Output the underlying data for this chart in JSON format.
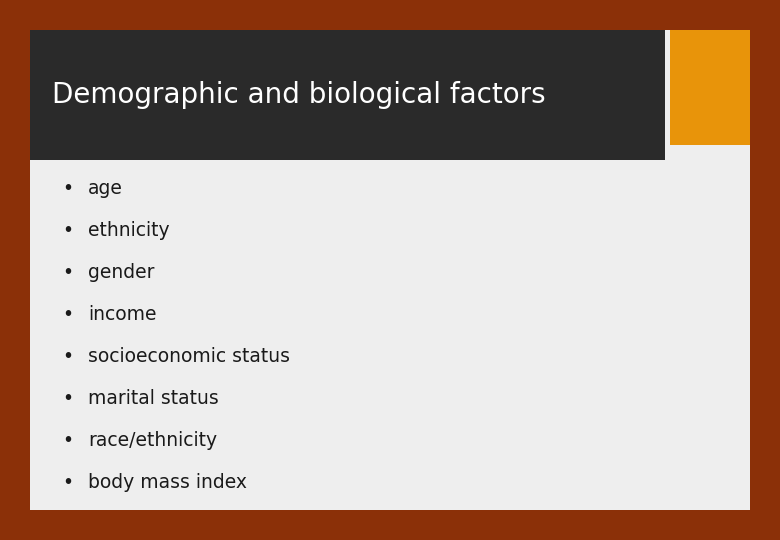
{
  "title": "Demographic and biological factors",
  "bullet_items": [
    "age",
    "ethnicity",
    "gender",
    "income",
    "socioeconomic status",
    "marital status",
    "race/ethnicity",
    "body mass index"
  ],
  "background_color": "#8B3008",
  "header_bg_color": "#2a2a2a",
  "content_bg_color": "#eeeeee",
  "accent_color": "#E8940A",
  "title_color": "#ffffff",
  "bullet_color": "#1a1a1a",
  "title_fontsize": 20,
  "bullet_fontsize": 13.5
}
